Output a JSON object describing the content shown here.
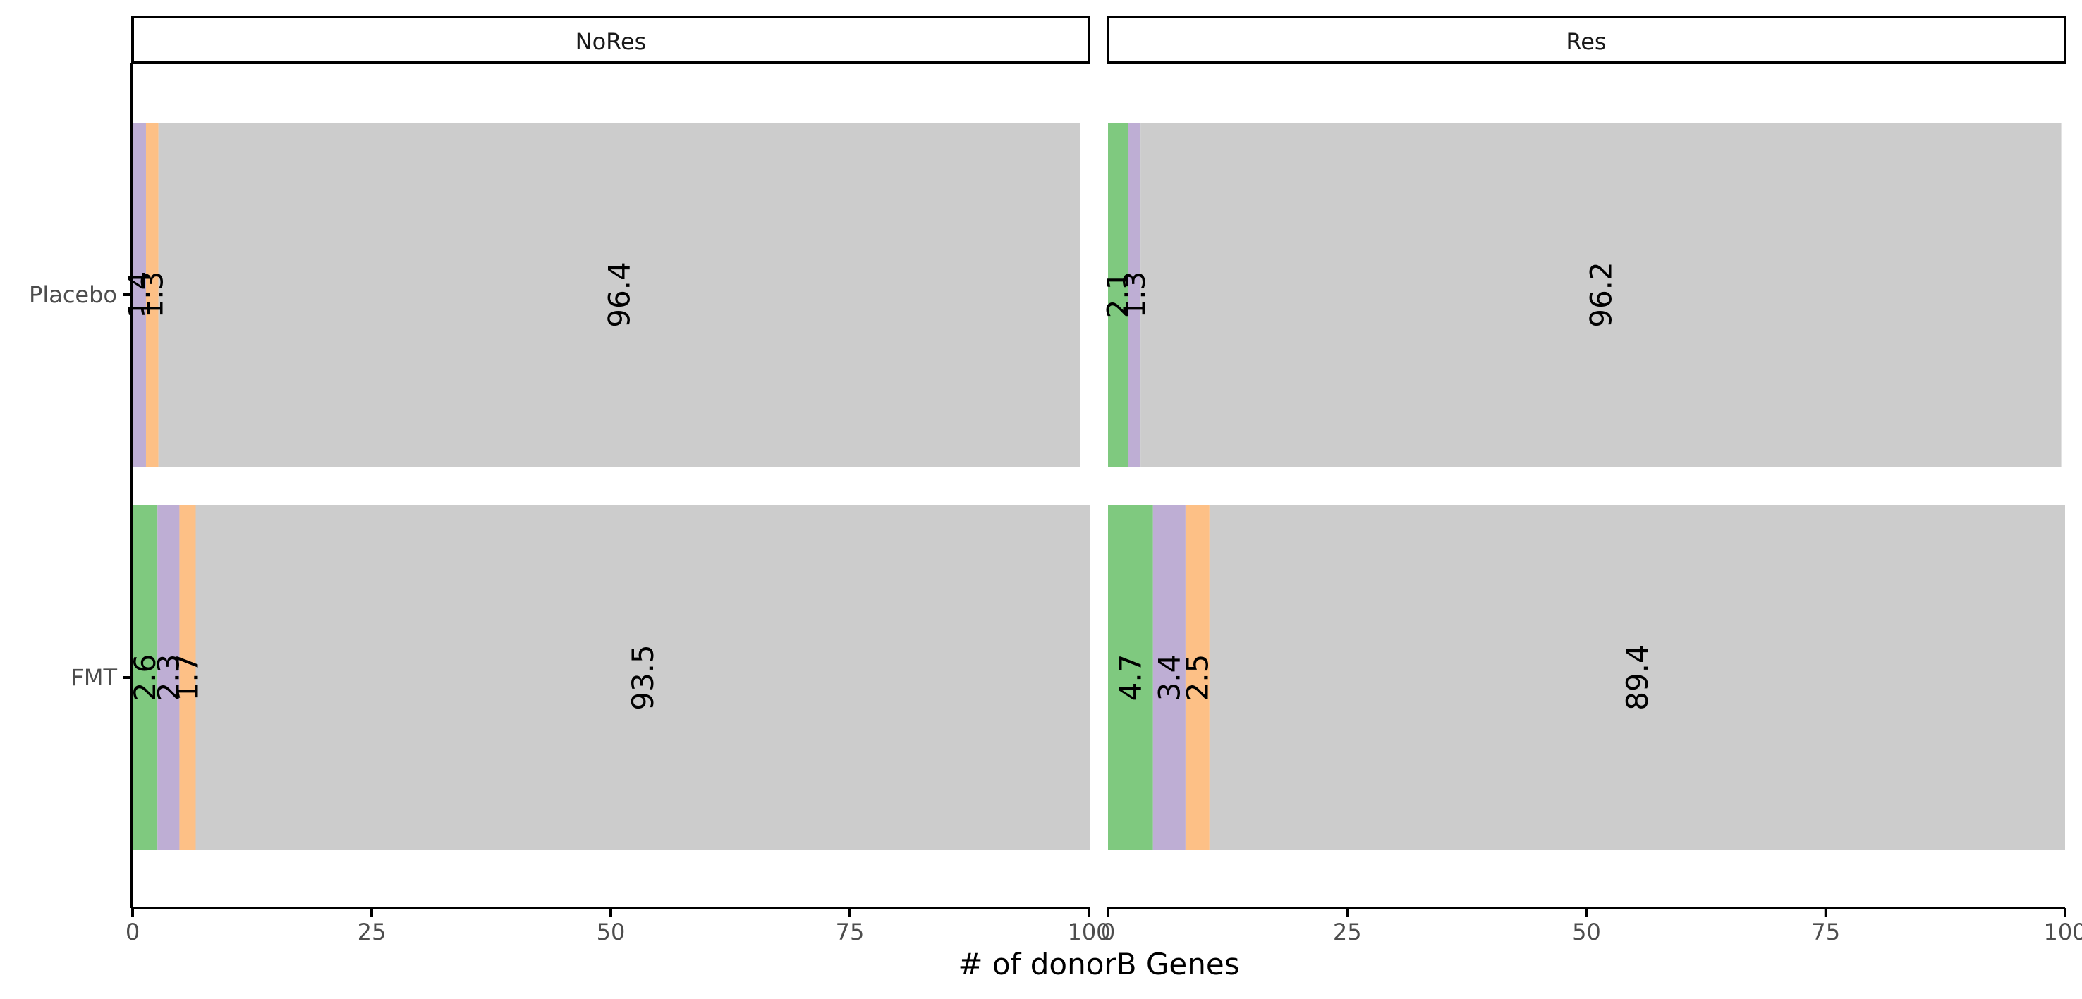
{
  "chart_data": {
    "type": "bar",
    "orientation": "horizontal",
    "stacked": true,
    "facets": [
      "NoRes",
      "Res"
    ],
    "categories": [
      "Placebo",
      "FMT"
    ],
    "xlabel": "# of donorB Genes",
    "ylabel": "",
    "xlim": [
      0,
      100
    ],
    "x_ticks": [
      "0",
      "25",
      "50",
      "75",
      "100"
    ],
    "grid": false,
    "legend": "none",
    "segment_order": [
      "green",
      "purple",
      "orange",
      "grey"
    ],
    "colors": {
      "green": "#7fc97f",
      "purple": "#beaed4",
      "orange": "#fdc086",
      "grey": "#cccccc"
    },
    "panels": [
      {
        "facet": "NoRes",
        "bars": [
          {
            "category": "Placebo",
            "segments": [
              {
                "color": "green",
                "value": 0.0,
                "label": ""
              },
              {
                "color": "purple",
                "value": 1.4,
                "label": "1.4"
              },
              {
                "color": "orange",
                "value": 1.3,
                "label": "1.3"
              },
              {
                "color": "grey",
                "value": 96.4,
                "label": "96.4"
              }
            ]
          },
          {
            "category": "FMT",
            "segments": [
              {
                "color": "green",
                "value": 2.6,
                "label": "2.6"
              },
              {
                "color": "purple",
                "value": 2.3,
                "label": "2.3"
              },
              {
                "color": "orange",
                "value": 1.7,
                "label": "1.7"
              },
              {
                "color": "grey",
                "value": 93.5,
                "label": "93.5"
              }
            ]
          }
        ]
      },
      {
        "facet": "Res",
        "bars": [
          {
            "category": "Placebo",
            "segments": [
              {
                "color": "green",
                "value": 2.1,
                "label": "2.1"
              },
              {
                "color": "purple",
                "value": 1.3,
                "label": "1.3"
              },
              {
                "color": "orange",
                "value": 0.0,
                "label": ""
              },
              {
                "color": "grey",
                "value": 96.2,
                "label": "96.2"
              }
            ]
          },
          {
            "category": "FMT",
            "segments": [
              {
                "color": "green",
                "value": 4.7,
                "label": "4.7"
              },
              {
                "color": "purple",
                "value": 3.4,
                "label": "3.4"
              },
              {
                "color": "orange",
                "value": 2.5,
                "label": "2.5"
              },
              {
                "color": "grey",
                "value": 89.4,
                "label": "89.4"
              }
            ]
          }
        ]
      }
    ]
  }
}
